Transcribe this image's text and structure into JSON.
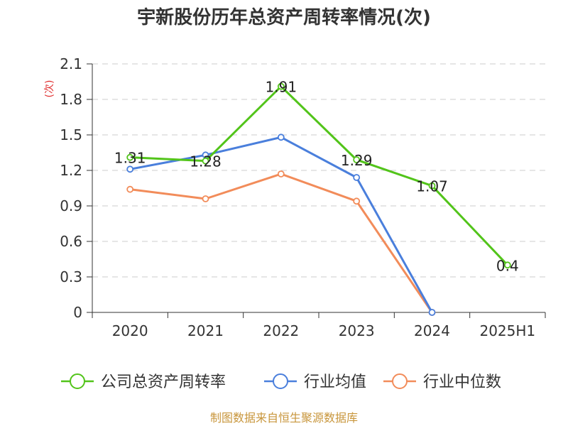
{
  "chart_data": {
    "type": "line",
    "title": "宇新股份历年总资产周转率情况(次)",
    "ylabel": "(次)",
    "xlabel": "",
    "categories": [
      "2020",
      "2021",
      "2022",
      "2023",
      "2024",
      "2025H1"
    ],
    "y_ticks": [
      "0",
      "0.3",
      "0.6",
      "0.9",
      "1.2",
      "1.5",
      "1.8",
      "2.1"
    ],
    "ylim": [
      0,
      2.1
    ],
    "grid": true,
    "legend_position": "bottom",
    "series": [
      {
        "name": "公司总资产周转率",
        "color": "#52c41a",
        "values": [
          1.31,
          1.28,
          1.91,
          1.29,
          1.07,
          0.4
        ],
        "labels": [
          "1.31",
          "1.28",
          "1.91",
          "1.29",
          "1.07",
          "0.4"
        ]
      },
      {
        "name": "行业均值",
        "color": "#4a7fdc",
        "values": [
          1.21,
          1.33,
          1.48,
          1.14,
          0,
          null
        ]
      },
      {
        "name": "行业中位数",
        "color": "#f28c5a",
        "values": [
          1.04,
          0.96,
          1.17,
          0.94,
          0,
          null
        ]
      }
    ],
    "source": "制图数据来自恒生聚源数据库"
  }
}
